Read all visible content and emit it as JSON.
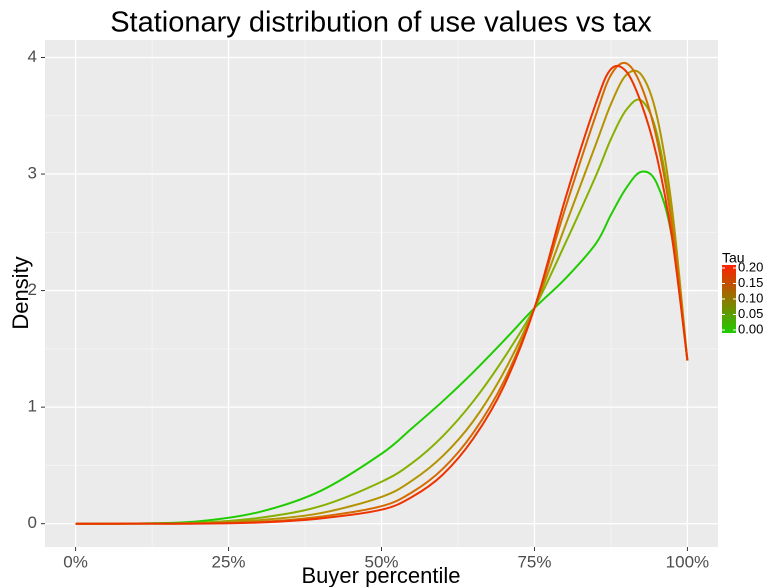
{
  "chart_data": {
    "type": "line",
    "title": "Stationary distribution of use values vs tax",
    "x_label": "Buyer percentile",
    "y_label": "Density",
    "x": [
      0,
      0.1,
      0.2,
      0.3,
      0.4,
      0.5,
      0.55,
      0.6,
      0.65,
      0.7,
      0.75,
      0.8,
      0.85,
      0.875,
      0.9,
      0.925,
      0.95,
      0.975,
      1.0
    ],
    "series": [
      {
        "color": "#1fcc00",
        "values": [
          0,
          0.002,
          0.02,
          0.1,
          0.28,
          0.6,
          0.82,
          1.05,
          1.3,
          1.57,
          1.85,
          2.1,
          2.4,
          2.65,
          2.88,
          3.02,
          2.92,
          2.45,
          1.4
        ]
      },
      {
        "color": "#86b000",
        "values": [
          0,
          0.001,
          0.008,
          0.05,
          0.15,
          0.36,
          0.52,
          0.75,
          1.05,
          1.42,
          1.85,
          2.4,
          2.98,
          3.3,
          3.55,
          3.63,
          3.35,
          2.6,
          1.4
        ]
      },
      {
        "color": "#b39300",
        "values": [
          0,
          0.0005,
          0.004,
          0.03,
          0.09,
          0.23,
          0.37,
          0.58,
          0.88,
          1.3,
          1.85,
          2.55,
          3.25,
          3.6,
          3.85,
          3.85,
          3.5,
          2.7,
          1.4
        ]
      },
      {
        "color": "#d46b00",
        "values": [
          0,
          0.0002,
          0.002,
          0.015,
          0.06,
          0.15,
          0.27,
          0.47,
          0.78,
          1.22,
          1.85,
          2.7,
          3.5,
          3.85,
          3.95,
          3.75,
          3.3,
          2.55,
          1.4
        ]
      },
      {
        "color": "#ee3300",
        "values": [
          0,
          0.0001,
          0.001,
          0.01,
          0.045,
          0.12,
          0.23,
          0.42,
          0.73,
          1.18,
          1.85,
          2.78,
          3.6,
          3.9,
          3.88,
          3.6,
          3.15,
          2.45,
          1.4
        ]
      }
    ],
    "xlim": [
      -0.05,
      1.05
    ],
    "xticks": [
      {
        "value": 0,
        "label": "0%"
      },
      {
        "value": 0.25,
        "label": "25%"
      },
      {
        "value": 0.5,
        "label": "50%"
      },
      {
        "value": 0.75,
        "label": "75%"
      },
      {
        "value": 1,
        "label": "100%"
      }
    ],
    "ylim": [
      -0.2,
      4.15
    ],
    "yticks": [
      0,
      1,
      2,
      3,
      4
    ],
    "grid": true,
    "legend": {
      "title": "Tau",
      "position": "right",
      "low_color": "#1fcc00",
      "high_color": "#ff2200",
      "range": [
        0,
        0.2
      ],
      "ticks": [
        {
          "value": 0,
          "label": "0.00"
        },
        {
          "value": 0.05,
          "label": "0.05"
        },
        {
          "value": 0.1,
          "label": "0.10"
        },
        {
          "value": 0.15,
          "label": "0.15"
        },
        {
          "value": 0.2,
          "label": "0.20"
        }
      ]
    }
  }
}
